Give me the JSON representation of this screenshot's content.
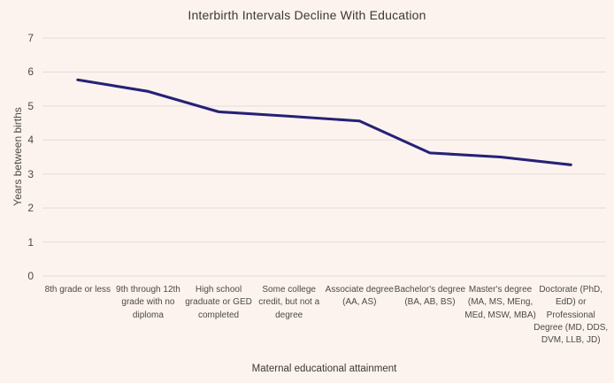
{
  "page": {
    "background_color": "#fdf3ee"
  },
  "chart_data": {
    "type": "line",
    "title": "Interbirth Intervals Decline With Education",
    "xlabel": "Maternal educational attainment",
    "ylabel": "Years between births",
    "categories": [
      "8th grade or less",
      "9th through 12th grade with no diploma",
      "High school graduate or GED completed",
      "Some college credit, but not a degree",
      "Associate degree (AA, AS)",
      "Bachelor's degree (BA, AB, BS)",
      "Master's degree (MA, MS, MEng, MEd, MSW, MBA)",
      "Doctorate (PhD, EdD) or Professional Degree (MD, DDS, DVM, LLB, JD)"
    ],
    "values": [
      5.77,
      5.43,
      4.83,
      4.7,
      4.56,
      3.62,
      3.5,
      3.27
    ],
    "ylim": [
      0,
      7
    ],
    "yticks": [
      0,
      1,
      2,
      3,
      4,
      5,
      6,
      7
    ],
    "grid": "horizontal",
    "legend": "none",
    "colors": {
      "line": "#262178",
      "gridline": "#e0ddd8",
      "title_text": "#3a3834",
      "axis_text": "#4b4944"
    }
  }
}
